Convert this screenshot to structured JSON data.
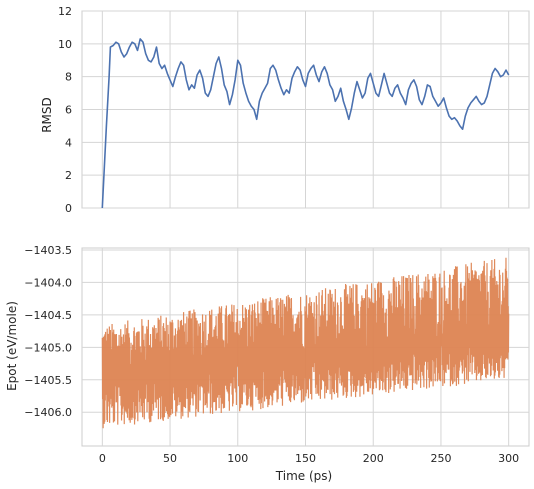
{
  "chart_data": [
    {
      "type": "line",
      "ylabel": "RMSD",
      "xlim": [
        -15,
        315
      ],
      "ylim": [
        0,
        12
      ],
      "yticks": [
        0,
        2,
        4,
        6,
        8,
        10,
        12
      ],
      "ytick_labels": [
        "0",
        "2",
        "4",
        "6",
        "8",
        "10",
        "12"
      ],
      "xticks": [
        0,
        50,
        100,
        150,
        200,
        250,
        300
      ],
      "grid": true,
      "series": [
        {
          "color": "#4c72b0",
          "x": [
            0,
            3,
            5,
            6,
            8,
            10,
            12,
            14,
            16,
            18,
            20,
            22,
            24,
            26,
            28,
            30,
            32,
            34,
            36,
            38,
            40,
            42,
            44,
            46,
            48,
            50,
            52,
            54,
            56,
            58,
            60,
            62,
            64,
            66,
            68,
            70,
            72,
            74,
            76,
            78,
            80,
            82,
            84,
            86,
            88,
            90,
            92,
            94,
            96,
            98,
            100,
            102,
            104,
            106,
            108,
            110,
            112,
            114,
            116,
            118,
            120,
            122,
            124,
            126,
            128,
            130,
            132,
            134,
            136,
            138,
            140,
            142,
            144,
            146,
            148,
            150,
            152,
            154,
            156,
            158,
            160,
            162,
            164,
            166,
            168,
            170,
            172,
            174,
            176,
            178,
            180,
            182,
            184,
            186,
            188,
            190,
            192,
            194,
            196,
            198,
            200,
            202,
            204,
            206,
            208,
            210,
            212,
            214,
            216,
            218,
            220,
            222,
            224,
            226,
            228,
            230,
            232,
            234,
            236,
            238,
            240,
            242,
            244,
            246,
            248,
            250,
            252,
            254,
            256,
            258,
            260,
            262,
            264,
            266,
            268,
            270,
            272,
            274,
            276,
            278,
            280,
            282,
            284,
            286,
            288,
            290,
            292,
            294,
            296,
            298,
            300
          ],
          "y": [
            0,
            5,
            8,
            9.8,
            9.9,
            10.1,
            10.0,
            9.5,
            9.2,
            9.4,
            9.8,
            10.1,
            10.0,
            9.6,
            10.3,
            10.1,
            9.4,
            9.0,
            8.9,
            9.2,
            9.8,
            8.8,
            8.5,
            8.7,
            8.2,
            7.8,
            7.4,
            8.0,
            8.5,
            8.9,
            8.7,
            7.8,
            7.2,
            7.5,
            7.3,
            8.1,
            8.4,
            7.9,
            7.0,
            6.8,
            7.2,
            8.0,
            8.8,
            9.2,
            8.5,
            7.5,
            7.1,
            6.3,
            6.9,
            7.8,
            9.0,
            8.7,
            7.6,
            7.0,
            6.5,
            6.2,
            6.0,
            5.4,
            6.5,
            7.0,
            7.3,
            7.6,
            8.5,
            8.7,
            8.4,
            7.8,
            7.3,
            6.9,
            7.2,
            7.0,
            7.9,
            8.3,
            8.6,
            8.4,
            7.8,
            7.4,
            8.2,
            8.5,
            8.7,
            8.1,
            7.7,
            8.3,
            8.6,
            8.2,
            7.5,
            7.2,
            6.5,
            6.8,
            7.3,
            6.5,
            6.0,
            5.4,
            6.1,
            7.0,
            7.7,
            7.2,
            6.7,
            7.0,
            7.9,
            8.2,
            7.6,
            7.0,
            6.8,
            7.5,
            8.2,
            7.6,
            7.0,
            6.8,
            7.3,
            7.5,
            7.0,
            6.7,
            6.3,
            7.2,
            7.6,
            7.8,
            7.4,
            6.6,
            6.3,
            6.8,
            7.5,
            7.4,
            6.8,
            6.5,
            6.2,
            6.4,
            6.7,
            6.1,
            5.6,
            5.4,
            5.5,
            5.3,
            5.0,
            4.8,
            5.6,
            6.1,
            6.4,
            6.6,
            6.8,
            6.5,
            6.3,
            6.4,
            6.8,
            7.5,
            8.2,
            8.5,
            8.3,
            8.0,
            8.1,
            8.4,
            8.1
          ]
        }
      ]
    },
    {
      "type": "line",
      "xlabel": "Time (ps)",
      "ylabel": "Epot (eV/mole)",
      "xlim": [
        -15,
        315
      ],
      "ylim": [
        -1406.52,
        -1403.47
      ],
      "yticks": [
        -1406.0,
        -1405.5,
        -1405.0,
        -1404.5,
        -1404.0,
        -1403.5
      ],
      "ytick_labels": [
        "−1406.0",
        "−1405.5",
        "−1405.0",
        "−1404.5",
        "−1404.0",
        "−1403.5"
      ],
      "xticks": [
        0,
        50,
        100,
        150,
        200,
        250,
        300
      ],
      "xtick_labels": [
        "0",
        "50",
        "100",
        "150",
        "200",
        "250",
        "300"
      ],
      "grid": true,
      "series": [
        {
          "color": "#dd8452",
          "x": [
            0,
            300
          ],
          "mean": [
            -1405.45,
            -1404.85
          ],
          "band_low": [
            -1406.25,
            -1405.5
          ],
          "band_high": [
            -1404.65,
            -1403.6
          ]
        }
      ]
    }
  ]
}
